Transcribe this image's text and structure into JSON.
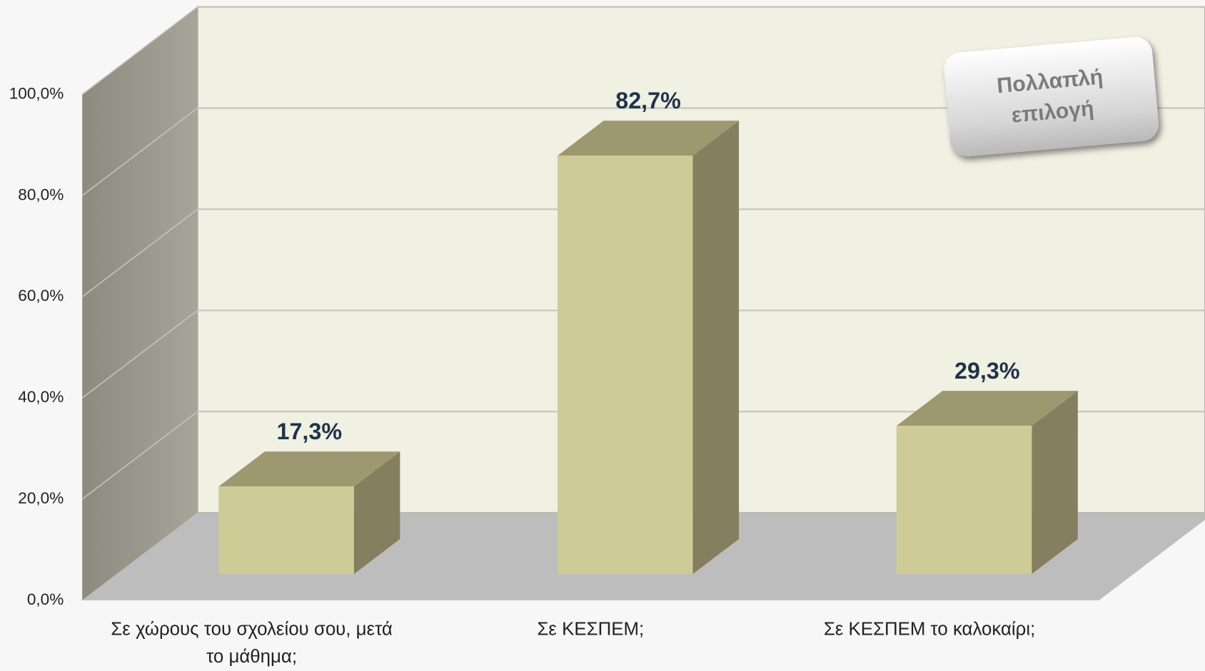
{
  "chart_data": {
    "type": "bar3d",
    "categories": [
      "Σε χώρους του σχολείου σου, μετά το μάθημα;",
      "Σε ΚΕΣΠΕΜ;",
      "Σε ΚΕΣΠΕΜ το καλοκαίρι;"
    ],
    "values": [
      17.3,
      82.7,
      29.3
    ],
    "value_labels": [
      "17,3%",
      "82,7%",
      "29,3%"
    ],
    "color": "#cfcb96",
    "ylim": [
      0,
      100
    ],
    "yticks": [
      {
        "value": 0,
        "label": "0,0%"
      },
      {
        "value": 20,
        "label": "20,0%"
      },
      {
        "value": 40,
        "label": "40,0%"
      },
      {
        "value": 60,
        "label": "60,0%"
      },
      {
        "value": 80,
        "label": "80,0%"
      },
      {
        "value": 100,
        "label": "100,0%"
      }
    ],
    "grid": true,
    "annotation": "Πολλαπλή επιλογή"
  }
}
